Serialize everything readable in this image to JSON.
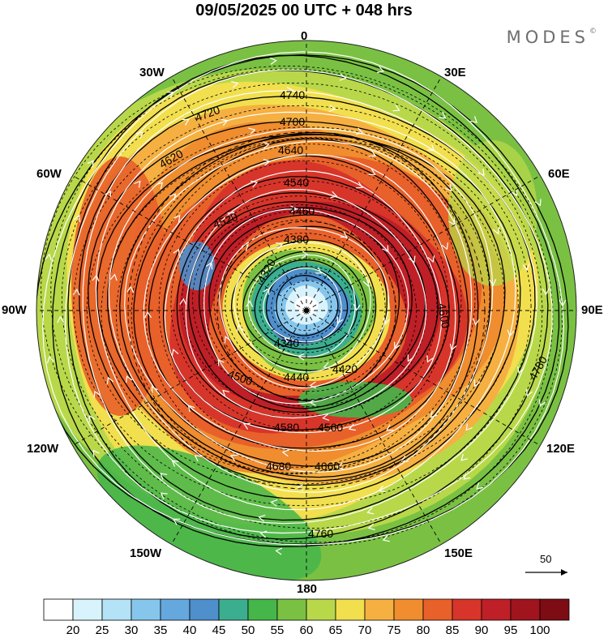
{
  "header": {
    "title": "09/05/2025  00 UTC  + 048 hrs",
    "brand": "MODES",
    "brand_mark": "©"
  },
  "map": {
    "projection": "north-polar-stereographic",
    "longitude_labels": {
      "n": "0",
      "ne": "30E",
      "ene": "60E",
      "e": "90E",
      "ese": "120E",
      "se": "150E",
      "s": "180",
      "sw": "150W",
      "wsw": "120W",
      "w": "90W",
      "wnw": "60W",
      "nw": "30W"
    },
    "vector_reference": "50",
    "contour_labels": [
      "4740",
      "4720",
      "4700",
      "4640",
      "4620",
      "4540",
      "4460",
      "4380",
      "4320",
      "4340",
      "4440",
      "4420",
      "4560",
      "4580",
      "4660",
      "4680",
      "4760",
      "4780",
      "4500",
      "4520",
      "4600"
    ]
  },
  "colorbar": {
    "ticks": [
      "20",
      "25",
      "30",
      "35",
      "40",
      "45",
      "50",
      "55",
      "60",
      "65",
      "70",
      "75",
      "80",
      "85",
      "90",
      "95",
      "100"
    ],
    "colors": [
      "#ffffff",
      "#d9f3fc",
      "#b4e2f6",
      "#87c6ec",
      "#64a8de",
      "#4e8fcc",
      "#3bae8f",
      "#45b64a",
      "#7ac143",
      "#b8d84a",
      "#f1df4e",
      "#f5b041",
      "#ef8d2f",
      "#e8602a",
      "#d7352a",
      "#bf1f26",
      "#a0141d",
      "#7d0c15"
    ]
  },
  "colors": {
    "wind_slow": "#b9e3f7",
    "wind_fast": "#a3141d",
    "contour": "#000000",
    "streamline": "#ffffff"
  }
}
